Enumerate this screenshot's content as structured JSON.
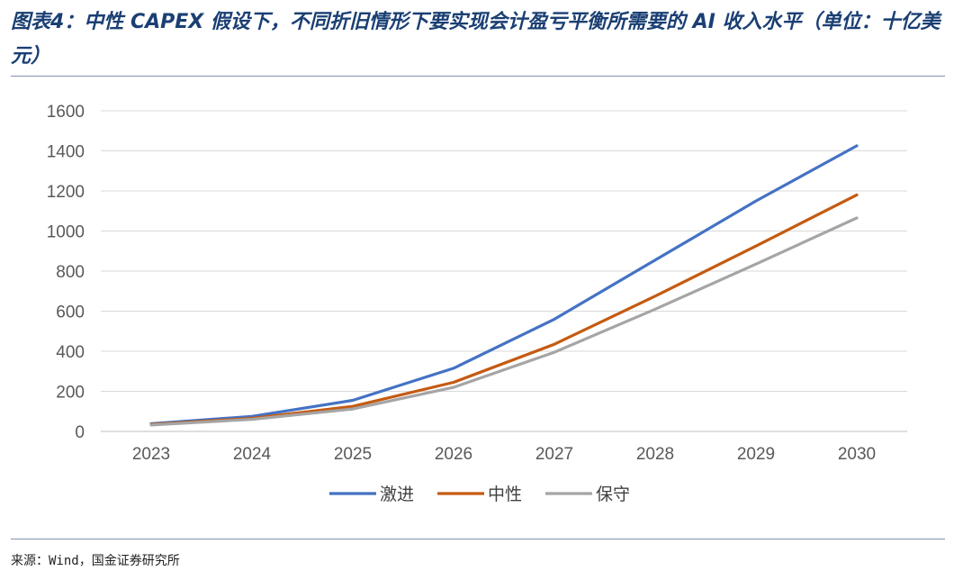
{
  "title": "图表4：中性 CAPEX 假设下，不同折旧情形下要实现会计盈亏平衡所需要的 AI 收入水平（单位：十亿美元）",
  "source": "来源：Wind，国金证券研究所",
  "chart_data": {
    "type": "line",
    "categories": [
      "2023",
      "2024",
      "2025",
      "2026",
      "2027",
      "2028",
      "2029",
      "2030"
    ],
    "yticks": [
      "0",
      "200",
      "400",
      "600",
      "800",
      "1000",
      "1200",
      "1400",
      "1600"
    ],
    "ylim": [
      0,
      1600
    ],
    "grid": true,
    "legend_position": "bottom",
    "series": [
      {
        "name": "激进",
        "color": "#4472c4",
        "values": [
          38,
          75,
          155,
          315,
          560,
          855,
          1150,
          1425
        ]
      },
      {
        "name": "中性",
        "color": "#c55a11",
        "values": [
          35,
          65,
          125,
          245,
          435,
          675,
          925,
          1180
        ]
      },
      {
        "name": "保守",
        "color": "#a5a5a5",
        "values": [
          32,
          60,
          112,
          220,
          395,
          610,
          835,
          1065
        ]
      }
    ]
  }
}
